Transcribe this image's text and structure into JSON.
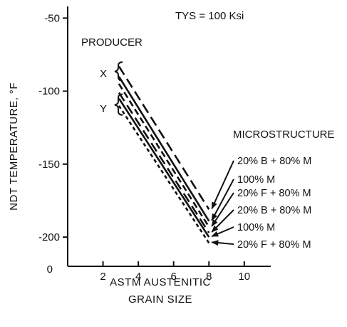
{
  "chart_data": {
    "type": "line",
    "annotation": "TYS = 100 Ksi",
    "xlabel_line1": "ASTM AUSTENITIC",
    "xlabel_line2": "GRAIN SIZE",
    "ylabel": "NDT TEMPERATURE, °F",
    "xlim": [
      0,
      11.5
    ],
    "ylim": [
      -220,
      -42
    ],
    "x_ticks": [
      2,
      4,
      6,
      8,
      10
    ],
    "x_tick_labels": [
      "2",
      "4",
      "6",
      "8",
      "10"
    ],
    "y_ticks": [
      -50,
      -100,
      -150,
      -200
    ],
    "y_tick_labels": [
      "-50",
      "-100",
      "-150",
      "-200"
    ],
    "y_origin_label": "0",
    "producer_label": "PRODUCER",
    "producer_groups": [
      "X",
      "Y"
    ],
    "legend_title": "MICROSTRUCTURE",
    "series": [
      {
        "label": "20% B + 80% M",
        "producer": "X",
        "dash": "long-dash",
        "x": [
          2.9,
          8
        ],
        "y": [
          -83,
          -181
        ]
      },
      {
        "label": "100% M",
        "producer": "X",
        "dash": "solid",
        "x": [
          2.9,
          8
        ],
        "y": [
          -90,
          -189
        ]
      },
      {
        "label": "20% F + 80% M",
        "producer": "X",
        "dash": "dashed",
        "x": [
          2.9,
          8
        ],
        "y": [
          -95,
          -193
        ]
      },
      {
        "label": "20% B + 80% M",
        "producer": "Y",
        "dash": "long-dash",
        "x": [
          2.9,
          8
        ],
        "y": [
          -101,
          -197
        ]
      },
      {
        "label": "100% M",
        "producer": "Y",
        "dash": "solid",
        "x": [
          2.9,
          8
        ],
        "y": [
          -105,
          -200
        ]
      },
      {
        "label": "20% F + 80% M",
        "producer": "Y",
        "dash": "short-dash",
        "x": [
          2.9,
          8
        ],
        "y": [
          -110,
          -204
        ]
      }
    ]
  }
}
